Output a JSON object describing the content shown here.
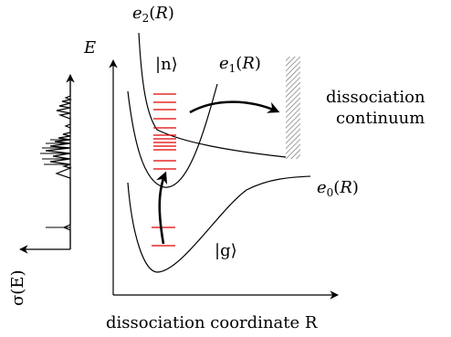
{
  "labels": {
    "e2": "e₂(R)",
    "e1": "e₁(R)",
    "e0": "e₀(R)",
    "E": "E",
    "n_state": "|n⟩",
    "g_state": "|g⟩",
    "dissociation_line1": "dissociation",
    "dissociation_line2": "continuum",
    "sigma": "σ(E)",
    "x_axis": "dissociation coordinate R"
  },
  "colors": {
    "levels": "#e00000",
    "lines": "#000000"
  }
}
